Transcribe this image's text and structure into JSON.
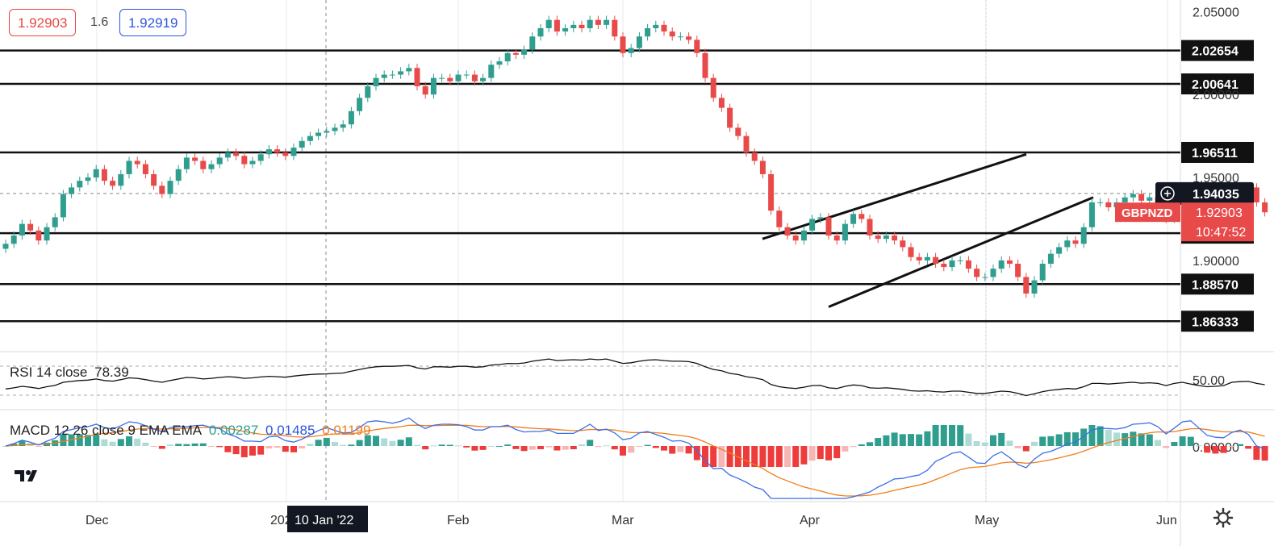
{
  "quotes": {
    "sell": "1.92903",
    "spread": "1.6",
    "buy": "1.92919"
  },
  "symbol": "GBPNZD",
  "countdown": "10:47:52",
  "crosshair_date": "10 Jan '22",
  "colors": {
    "up": "#2f9e8f",
    "down": "#e84a4a",
    "rsi": "#111111",
    "macd": "#3c6ee8",
    "signal": "#f07d1a",
    "hist_up_strong": "#2f9e8f",
    "hist_up_weak": "#aedcd4",
    "hist_down_strong": "#ee3b3b",
    "hist_down_weak": "#f7b6b6",
    "sell": "#e8473e",
    "buy": "#2d55e0"
  },
  "icons": {
    "logo": "tradingview-logo-icon",
    "settings": "gear-icon",
    "crosshair": "crosshair-plus-icon"
  },
  "rsi": {
    "label": "RSI 14 close",
    "value": "78.39",
    "scale_label": "50.00"
  },
  "macd": {
    "label": "MACD 12 26 close 9 EMA EMA",
    "hist": "0.00287",
    "macd": "0.01485",
    "signal": "0.01199",
    "scale_label": "0.00000"
  },
  "chart_data": {
    "type": "candlestick",
    "ylim": [
      1.845,
      2.057
    ],
    "y_ticks": [
      "2.05000",
      "2.00000",
      "1.95000",
      "1.90000"
    ],
    "x_ticks": [
      "Dec",
      "2022",
      "Feb",
      "Mar",
      "Apr",
      "May",
      "Jun"
    ],
    "horizontal_levels": [
      "2.02654",
      "2.00641",
      "1.96511",
      "1.91642",
      "1.88570",
      "1.86333"
    ],
    "current_price": "1.92903",
    "crosshair_price": "1.94035",
    "channel": {
      "upper": [
        [
          1.913,
          1.964
        ]
      ],
      "lower": [
        [
          1.872,
          1.938
        ]
      ]
    },
    "closes": [
      1.91,
      1.915,
      1.922,
      1.918,
      1.912,
      1.92,
      1.926,
      1.94,
      1.944,
      1.948,
      1.95,
      1.955,
      1.948,
      1.945,
      1.952,
      1.96,
      1.958,
      1.952,
      1.945,
      1.94,
      1.948,
      1.955,
      1.962,
      1.96,
      1.955,
      1.958,
      1.962,
      1.965,
      1.963,
      1.958,
      1.96,
      1.964,
      1.967,
      1.965,
      1.963,
      1.968,
      1.972,
      1.975,
      1.977,
      1.978,
      1.98,
      1.982,
      1.99,
      1.998,
      2.005,
      2.01,
      2.012,
      2.012,
      2.014,
      2.016,
      2.005,
      2.0,
      2.01,
      2.01,
      2.008,
      2.012,
      2.012,
      2.008,
      2.01,
      2.018,
      2.02,
      2.025,
      2.024,
      2.027,
      2.035,
      2.04,
      2.045,
      2.038,
      2.04,
      2.042,
      2.04,
      2.045,
      2.042,
      2.045,
      2.035,
      2.025,
      2.028,
      2.035,
      2.04,
      2.042,
      2.038,
      2.035,
      2.035,
      2.033,
      2.025,
      2.01,
      1.998,
      1.992,
      1.98,
      1.975,
      1.965,
      1.96,
      1.952,
      1.93,
      1.92,
      1.915,
      1.912,
      1.918,
      1.925,
      1.926,
      1.915,
      1.912,
      1.922,
      1.928,
      1.925,
      1.915,
      1.913,
      1.915,
      1.912,
      1.908,
      1.902,
      1.9,
      1.902,
      1.898,
      1.896,
      1.9,
      1.9,
      1.895,
      1.89,
      1.89,
      1.895,
      1.9,
      1.898,
      1.89,
      1.88,
      1.888,
      1.898,
      1.904,
      1.908,
      1.912,
      1.91,
      1.92,
      1.935,
      1.935,
      1.932,
      1.935,
      1.938,
      1.94,
      1.936,
      1.938,
      1.935,
      1.925,
      1.935,
      1.94,
      1.932,
      1.925,
      1.92,
      1.922,
      1.925,
      1.94,
      1.943,
      1.944,
      1.935,
      1.929
    ]
  }
}
